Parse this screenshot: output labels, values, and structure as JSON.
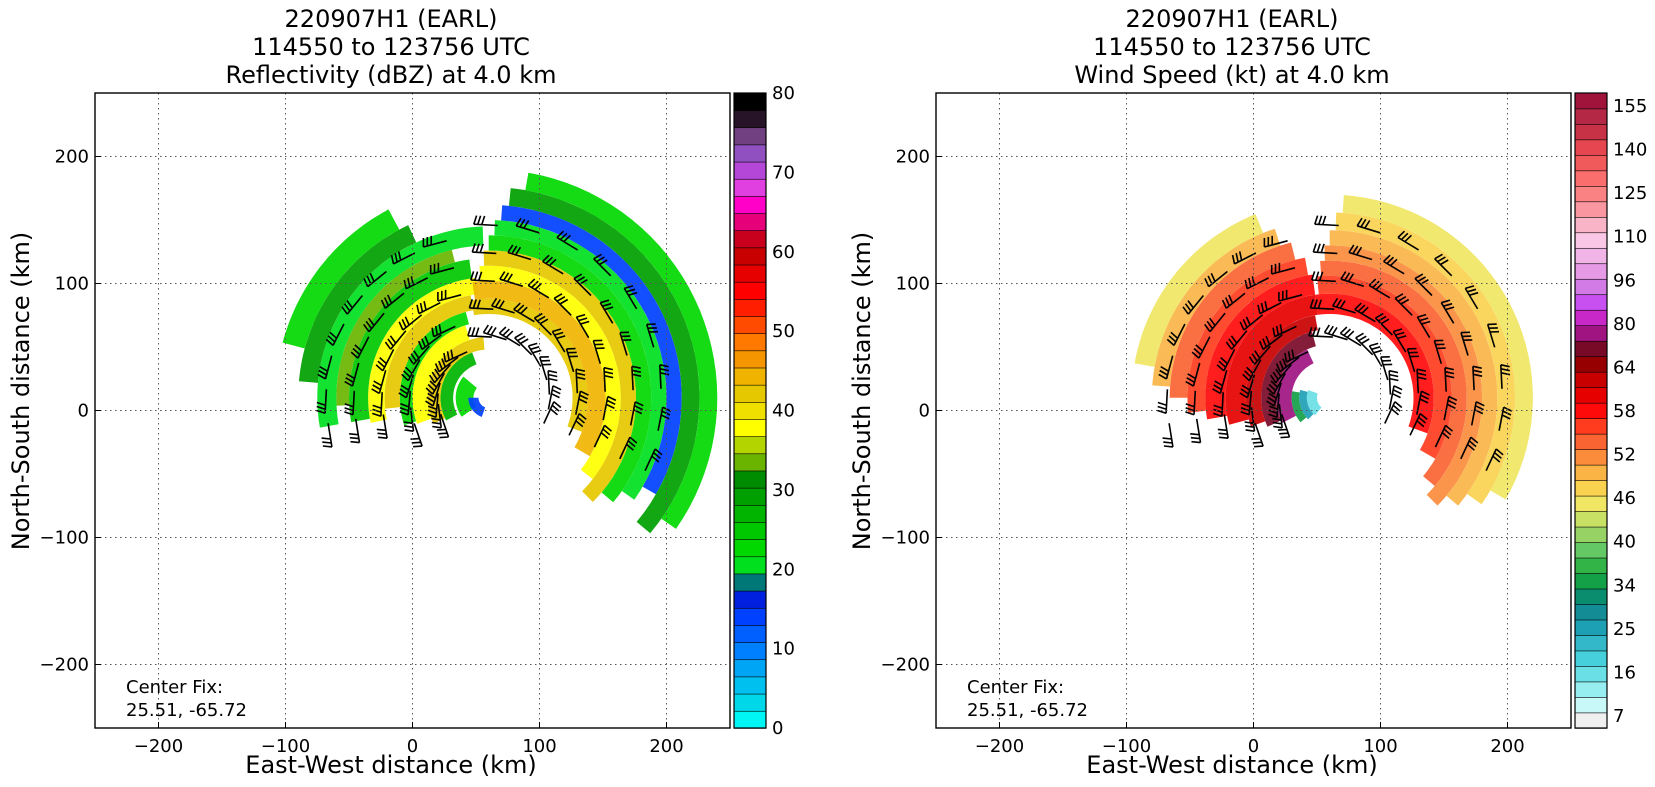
{
  "chart_data": [
    {
      "type": "heatmap",
      "title": [
        "220907H1 (EARL)",
        "114550 to 123756 UTC",
        "Reflectivity (dBZ) at 4.0 km"
      ],
      "xlabel": "East-West distance (km)",
      "ylabel": "North-South distance (km)",
      "xlim": [
        -250,
        250
      ],
      "ylim": [
        -250,
        250
      ],
      "xticks": [
        -200,
        -100,
        0,
        100,
        200
      ],
      "yticks": [
        -200,
        -100,
        0,
        100,
        200
      ],
      "xticklabels": [
        "−200",
        "−100",
        "0",
        "100",
        "200"
      ],
      "yticklabels": [
        "−200",
        "−100",
        "0",
        "100",
        "200"
      ],
      "grid": true,
      "annotation": [
        "Center Fix:",
        "25.51, -65.72"
      ],
      "colorbar": {
        "min": 0,
        "max": 80,
        "ticks": [
          0,
          10,
          20,
          30,
          40,
          50,
          60,
          70,
          80
        ],
        "colors": [
          "#00f5f5",
          "#00d8ea",
          "#00c0f0",
          "#00a6f5",
          "#0080ff",
          "#0060ff",
          "#0040ff",
          "#0020e0",
          "#007878",
          "#00e01e",
          "#00d800",
          "#00c800",
          "#00b400",
          "#00a000",
          "#008c00",
          "#6ab400",
          "#b4d400",
          "#ffff00",
          "#f0e000",
          "#e6c800",
          "#f0b400",
          "#f59600",
          "#ff7800",
          "#ff4b00",
          "#ff1e00",
          "#ff0000",
          "#e60000",
          "#c80000",
          "#c8001e",
          "#e6007a",
          "#ff00c8",
          "#e040e0",
          "#b446d8",
          "#9050c0",
          "#704080",
          "#281428",
          "#000000"
        ]
      },
      "wind_barbs": true
    },
    {
      "type": "heatmap",
      "title": [
        "220907H1 (EARL)",
        "114550 to 123756 UTC",
        "Wind Speed (kt) at 4.0 km"
      ],
      "xlabel": "East-West distance (km)",
      "ylabel": "North-South distance (km)",
      "xlim": [
        -250,
        250
      ],
      "ylim": [
        -250,
        250
      ],
      "xticks": [
        -200,
        -100,
        0,
        100,
        200
      ],
      "yticks": [
        -200,
        -100,
        0,
        100,
        200
      ],
      "xticklabels": [
        "−200",
        "−100",
        "0",
        "100",
        "200"
      ],
      "yticklabels": [
        "−200",
        "−100",
        "0",
        "100",
        "200"
      ],
      "grid": true,
      "annotation": [
        "Center Fix:",
        "25.51, -65.72"
      ],
      "colorbar": {
        "ticks_text": [
          "7",
          "16",
          "25",
          "34",
          "40",
          "46",
          "52",
          "58",
          "64",
          "80",
          "96",
          "110",
          "125",
          "140",
          "155"
        ],
        "colors": [
          "#f0f0f0",
          "#c8f8f8",
          "#96eef0",
          "#6ae0e6",
          "#46d0dc",
          "#32b8c8",
          "#1ea0b4",
          "#148c96",
          "#0a8c6e",
          "#14a046",
          "#32b446",
          "#64c864",
          "#96d264",
          "#c8e064",
          "#f0e664",
          "#fad250",
          "#fab446",
          "#fa8c3c",
          "#fa6432",
          "#ff3c1e",
          "#ff0a0a",
          "#e60000",
          "#c80000",
          "#960000",
          "#780a28",
          "#a01482",
          "#c828c8",
          "#c850f0",
          "#d27ae6",
          "#e69ae6",
          "#f0b4e6",
          "#fac8e6",
          "#fab4c8",
          "#fa96a0",
          "#fa8282",
          "#fa6e6e",
          "#f05a5a",
          "#e64650",
          "#c83246",
          "#b42846",
          "#a0143c"
        ]
      },
      "wind_barbs": true
    }
  ]
}
